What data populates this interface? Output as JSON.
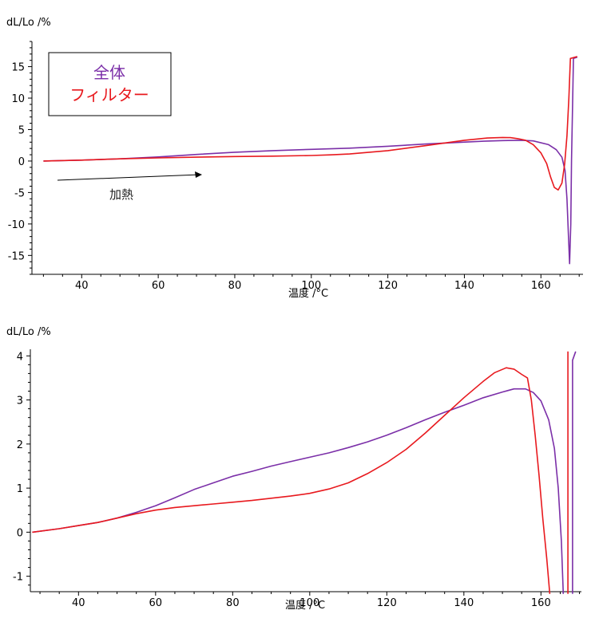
{
  "chart_data": [
    {
      "type": "line",
      "ylabel": "dL/Lo /%",
      "xlabel": "温度 /°C",
      "xlim": [
        27,
        171
      ],
      "ylim": [
        -18,
        19
      ],
      "x_ticks": [
        40,
        60,
        80,
        100,
        120,
        140,
        160
      ],
      "y_ticks": [
        15,
        10,
        5,
        0,
        -5,
        -10,
        -15
      ],
      "legend": {
        "placement": "top-left",
        "entries": [
          {
            "label": "全体",
            "color": "#7b2fa8"
          },
          {
            "label": "フィルター",
            "color": "#e8191e"
          }
        ]
      },
      "annotation": {
        "text": "加熱",
        "arrow_from": [
          33,
          -3.3
        ],
        "arrow_to": [
          72,
          -2.5
        ]
      },
      "series": [
        {
          "name": "全体",
          "color": "#7b2fa8",
          "points": [
            [
              30,
              0
            ],
            [
              40,
              0.15
            ],
            [
              50,
              0.35
            ],
            [
              60,
              0.65
            ],
            [
              70,
              1.05
            ],
            [
              80,
              1.4
            ],
            [
              90,
              1.65
            ],
            [
              100,
              1.85
            ],
            [
              110,
              2.05
            ],
            [
              120,
              2.35
            ],
            [
              130,
              2.7
            ],
            [
              138,
              2.95
            ],
            [
              145,
              3.15
            ],
            [
              150,
              3.25
            ],
            [
              155,
              3.3
            ],
            [
              158,
              3.2
            ],
            [
              162,
              2.6
            ],
            [
              164,
              1.8
            ],
            [
              165.5,
              0.6
            ],
            [
              166.3,
              -1.5
            ],
            [
              166.8,
              -6
            ],
            [
              167.2,
              -12
            ],
            [
              167.5,
              -16.3
            ],
            [
              167.8,
              -10
            ],
            [
              168,
              0
            ],
            [
              168.3,
              10
            ],
            [
              168.5,
              16.3
            ],
            [
              169.5,
              16.5
            ]
          ]
        },
        {
          "name": "フィルター",
          "color": "#e8191e",
          "points": [
            [
              30,
              0
            ],
            [
              40,
              0.15
            ],
            [
              50,
              0.35
            ],
            [
              60,
              0.5
            ],
            [
              70,
              0.62
            ],
            [
              80,
              0.72
            ],
            [
              90,
              0.78
            ],
            [
              100,
              0.88
            ],
            [
              105,
              0.98
            ],
            [
              110,
              1.12
            ],
            [
              120,
              1.65
            ],
            [
              130,
              2.45
            ],
            [
              140,
              3.3
            ],
            [
              146,
              3.65
            ],
            [
              150,
              3.75
            ],
            [
              152,
              3.72
            ],
            [
              154,
              3.55
            ],
            [
              156,
              3.3
            ],
            [
              158,
              2.6
            ],
            [
              160,
              1.3
            ],
            [
              161.5,
              -0.4
            ],
            [
              162.5,
              -2.5
            ],
            [
              163.5,
              -4.2
            ],
            [
              164.5,
              -4.6
            ],
            [
              165.5,
              -3.5
            ],
            [
              166.2,
              -0.5
            ],
            [
              166.8,
              4
            ],
            [
              167.3,
              10
            ],
            [
              167.7,
              16.3
            ],
            [
              169.5,
              16.6
            ]
          ]
        }
      ]
    },
    {
      "type": "line",
      "ylabel": "dL/Lo /%",
      "xlabel": "温度 /°C",
      "xlim": [
        27.5,
        170.5
      ],
      "ylim": [
        -1.35,
        4.15
      ],
      "x_ticks": [
        40,
        60,
        80,
        100,
        120,
        140,
        160
      ],
      "y_ticks": [
        4,
        3,
        2,
        1,
        0,
        -1
      ],
      "series": [
        {
          "name": "全体",
          "color": "#7b2fa8",
          "points": [
            [
              28,
              0
            ],
            [
              35,
              0.08
            ],
            [
              40,
              0.15
            ],
            [
              45,
              0.22
            ],
            [
              50,
              0.32
            ],
            [
              55,
              0.45
            ],
            [
              60,
              0.6
            ],
            [
              65,
              0.78
            ],
            [
              70,
              0.97
            ],
            [
              75,
              1.12
            ],
            [
              80,
              1.27
            ],
            [
              85,
              1.38
            ],
            [
              90,
              1.5
            ],
            [
              95,
              1.6
            ],
            [
              100,
              1.7
            ],
            [
              105,
              1.8
            ],
            [
              110,
              1.92
            ],
            [
              115,
              2.05
            ],
            [
              120,
              2.2
            ],
            [
              125,
              2.37
            ],
            [
              130,
              2.55
            ],
            [
              135,
              2.72
            ],
            [
              140,
              2.88
            ],
            [
              145,
              3.05
            ],
            [
              150,
              3.18
            ],
            [
              153,
              3.25
            ],
            [
              156,
              3.25
            ],
            [
              158,
              3.17
            ],
            [
              160,
              2.98
            ],
            [
              162,
              2.55
            ],
            [
              163.5,
              1.9
            ],
            [
              164.5,
              1.0
            ],
            [
              165.3,
              -0.2
            ],
            [
              165.8,
              -1.4
            ]
          ]
        },
        {
          "name": "全体-step",
          "color": "#7b2fa8",
          "points": [
            [
              168.2,
              -1.4
            ],
            [
              168.2,
              3.9
            ],
            [
              169,
              4.1
            ]
          ]
        },
        {
          "name": "フィルター",
          "color": "#e8191e",
          "points": [
            [
              28,
              0
            ],
            [
              35,
              0.08
            ],
            [
              40,
              0.15
            ],
            [
              45,
              0.22
            ],
            [
              50,
              0.32
            ],
            [
              55,
              0.42
            ],
            [
              60,
              0.5
            ],
            [
              65,
              0.56
            ],
            [
              70,
              0.6
            ],
            [
              75,
              0.64
            ],
            [
              80,
              0.68
            ],
            [
              85,
              0.72
            ],
            [
              90,
              0.77
            ],
            [
              95,
              0.82
            ],
            [
              100,
              0.88
            ],
            [
              105,
              0.98
            ],
            [
              110,
              1.12
            ],
            [
              115,
              1.33
            ],
            [
              120,
              1.58
            ],
            [
              125,
              1.88
            ],
            [
              130,
              2.25
            ],
            [
              135,
              2.65
            ],
            [
              140,
              3.05
            ],
            [
              145,
              3.42
            ],
            [
              148,
              3.62
            ],
            [
              151,
              3.73
            ],
            [
              153,
              3.7
            ],
            [
              155,
              3.58
            ],
            [
              156.5,
              3.5
            ],
            [
              157.5,
              3.0
            ],
            [
              158.5,
              2.2
            ],
            [
              159.5,
              1.3
            ],
            [
              160.5,
              0.3
            ],
            [
              161.5,
              -0.6
            ],
            [
              162.3,
              -1.4
            ]
          ]
        },
        {
          "name": "フィルター-step",
          "color": "#e8191e",
          "points": [
            [
              167,
              -1.4
            ],
            [
              167,
              4.1
            ]
          ]
        }
      ]
    }
  ]
}
